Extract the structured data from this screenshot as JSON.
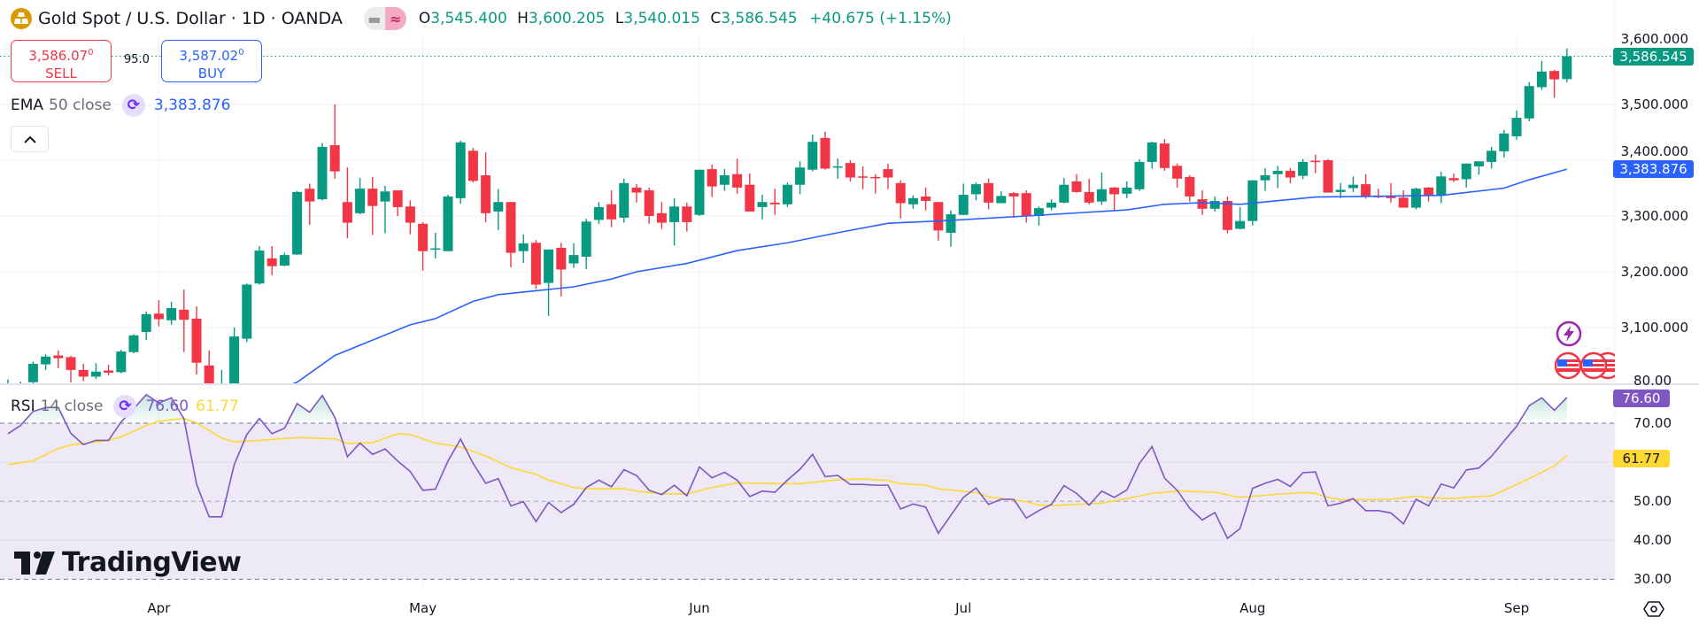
{
  "header": {
    "symbol_title": "Gold Spot / U.S. Dollar · 1D · OANDA",
    "logo_icon": "gold-bars-icon",
    "toggle_icons": [
      "minus-icon",
      "approx-wave-icon"
    ],
    "ohlc": {
      "o_label": "O",
      "o": "3,545.400",
      "h_label": "H",
      "h": "3,600.205",
      "l_label": "L",
      "l": "3,540.015",
      "c_label": "C",
      "c": "3,586.545",
      "change": "+40.675 (+1.15%)"
    }
  },
  "trade": {
    "sell_price_main": "3,586.07",
    "sell_price_sup": "0",
    "sell_label": "SELL",
    "spread": "95.0",
    "buy_price_main": "3,587.02",
    "buy_price_sup": "0",
    "buy_label": "BUY"
  },
  "ema_legend": {
    "name": "EMA",
    "params": "50 close",
    "value": "3,383.876"
  },
  "rsi_legend": {
    "name": "RSI",
    "params": "14 close",
    "value": "76.60",
    "ma_value": "61.77"
  },
  "watermark": "TradingView",
  "colors": {
    "up": "#089981",
    "down": "#f23645",
    "ema": "#2962ff",
    "rsi": "#7e57c2",
    "rsi_ma": "#fdd835",
    "band": "#ede9f7",
    "grid": "#f0f2f5"
  },
  "chart_data": [
    {
      "type": "candlestick",
      "title": "Gold Spot / U.S. Dollar · 1D · OANDA",
      "ylim": [
        3000,
        3600
      ],
      "y_ticks": [
        "3,100.000",
        "3,200.000",
        "3,300.000",
        "3,400.000",
        "3,500.000",
        "3,600.000"
      ],
      "x_ticks": [
        {
          "label": "Apr",
          "candle": 13
        },
        {
          "label": "May",
          "candle": 34
        },
        {
          "label": "Jun",
          "candle": 56
        },
        {
          "label": "Jul",
          "candle": 77
        },
        {
          "label": "Aug",
          "candle": 100
        },
        {
          "label": "Sep",
          "candle": 121
        }
      ],
      "grid": true,
      "last_price_label": "3,586.545",
      "ema_label": "3,383.876",
      "candles_ohlc": [
        [
          2985,
          3007,
          2970,
          3000
        ],
        [
          2990,
          3003,
          2980,
          2998
        ],
        [
          3002,
          3039,
          2998,
          3035
        ],
        [
          3034,
          3052,
          3024,
          3048
        ],
        [
          3050,
          3059,
          3027,
          3045
        ],
        [
          3047,
          3049,
          3002,
          3024
        ],
        [
          3024,
          3035,
          3004,
          3012
        ],
        [
          3012,
          3036,
          3008,
          3021
        ],
        [
          3023,
          3033,
          3014,
          3019
        ],
        [
          3020,
          3060,
          3018,
          3057
        ],
        [
          3056,
          3088,
          3054,
          3086
        ],
        [
          3092,
          3129,
          3078,
          3124
        ],
        [
          3125,
          3149,
          3102,
          3115
        ],
        [
          3113,
          3146,
          3105,
          3135
        ],
        [
          3132,
          3168,
          3056,
          3114
        ],
        [
          3116,
          3138,
          3016,
          3037
        ],
        [
          3032,
          3059,
          2980,
          2995
        ],
        [
          2960,
          3024,
          2955,
          2990
        ],
        [
          2990,
          3100,
          2980,
          3084
        ],
        [
          3080,
          3179,
          3074,
          3177
        ],
        [
          3179,
          3246,
          3177,
          3238
        ],
        [
          3224,
          3246,
          3194,
          3210
        ],
        [
          3211,
          3234,
          3210,
          3230
        ],
        [
          3231,
          3345,
          3230,
          3343
        ],
        [
          3349,
          3358,
          3284,
          3326
        ],
        [
          3330,
          3431,
          3328,
          3424
        ],
        [
          3427,
          3500,
          3367,
          3380
        ],
        [
          3325,
          3387,
          3260,
          3288
        ],
        [
          3305,
          3368,
          3303,
          3349
        ],
        [
          3349,
          3370,
          3266,
          3318
        ],
        [
          3326,
          3354,
          3269,
          3344
        ],
        [
          3346,
          3346,
          3300,
          3316
        ],
        [
          3317,
          3328,
          3267,
          3288
        ],
        [
          3286,
          3289,
          3202,
          3237
        ],
        [
          3241,
          3270,
          3224,
          3242
        ],
        [
          3237,
          3338,
          3237,
          3335
        ],
        [
          3332,
          3435,
          3322,
          3432
        ],
        [
          3417,
          3422,
          3360,
          3363
        ],
        [
          3373,
          3414,
          3289,
          3305
        ],
        [
          3308,
          3348,
          3275,
          3325
        ],
        [
          3325,
          3325,
          3208,
          3234
        ],
        [
          3237,
          3267,
          3216,
          3251
        ],
        [
          3252,
          3257,
          3169,
          3177
        ],
        [
          3180,
          3240,
          3121,
          3240
        ],
        [
          3243,
          3252,
          3156,
          3204
        ],
        [
          3215,
          3251,
          3207,
          3230
        ],
        [
          3227,
          3295,
          3205,
          3290
        ],
        [
          3293,
          3325,
          3286,
          3316
        ],
        [
          3321,
          3346,
          3280,
          3294
        ],
        [
          3297,
          3367,
          3288,
          3359
        ],
        [
          3351,
          3357,
          3324,
          3342
        ],
        [
          3346,
          3351,
          3286,
          3300
        ],
        [
          3305,
          3325,
          3277,
          3288
        ],
        [
          3289,
          3332,
          3247,
          3317
        ],
        [
          3317,
          3324,
          3272,
          3289
        ],
        [
          3302,
          3383,
          3300,
          3383
        ],
        [
          3384,
          3392,
          3334,
          3353
        ],
        [
          3356,
          3384,
          3345,
          3373
        ],
        [
          3375,
          3403,
          3340,
          3351
        ],
        [
          3356,
          3376,
          3308,
          3308
        ],
        [
          3316,
          3338,
          3294,
          3325
        ],
        [
          3324,
          3349,
          3302,
          3321
        ],
        [
          3321,
          3360,
          3316,
          3356
        ],
        [
          3356,
          3398,
          3339,
          3387
        ],
        [
          3383,
          3446,
          3380,
          3433
        ],
        [
          3440,
          3451,
          3383,
          3385
        ],
        [
          3388,
          3403,
          3367,
          3389
        ],
        [
          3395,
          3400,
          3362,
          3369
        ],
        [
          3371,
          3389,
          3348,
          3370
        ],
        [
          3370,
          3375,
          3340,
          3369
        ],
        [
          3384,
          3394,
          3348,
          3369
        ],
        [
          3359,
          3364,
          3296,
          3323
        ],
        [
          3321,
          3337,
          3313,
          3332
        ],
        [
          3335,
          3351,
          3310,
          3327
        ],
        [
          3325,
          3325,
          3256,
          3274
        ],
        [
          3270,
          3310,
          3245,
          3303
        ],
        [
          3302,
          3358,
          3302,
          3338
        ],
        [
          3339,
          3360,
          3328,
          3357
        ],
        [
          3359,
          3367,
          3312,
          3324
        ],
        [
          3323,
          3344,
          3323,
          3336
        ],
        [
          3341,
          3343,
          3297,
          3335
        ],
        [
          3341,
          3346,
          3288,
          3300
        ],
        [
          3300,
          3317,
          3283,
          3314
        ],
        [
          3315,
          3330,
          3310,
          3324
        ],
        [
          3324,
          3368,
          3323,
          3356
        ],
        [
          3362,
          3375,
          3342,
          3343
        ],
        [
          3343,
          3367,
          3321,
          3324
        ],
        [
          3326,
          3378,
          3320,
          3348
        ],
        [
          3351,
          3352,
          3310,
          3339
        ],
        [
          3340,
          3362,
          3332,
          3351
        ],
        [
          3348,
          3402,
          3345,
          3397
        ],
        [
          3397,
          3433,
          3385,
          3432
        ],
        [
          3430,
          3438,
          3381,
          3386
        ],
        [
          3390,
          3394,
          3351,
          3367
        ],
        [
          3370,
          3373,
          3326,
          3335
        ],
        [
          3330,
          3346,
          3302,
          3313
        ],
        [
          3313,
          3335,
          3308,
          3327
        ],
        [
          3327,
          3335,
          3269,
          3275
        ],
        [
          3277,
          3316,
          3276,
          3291
        ],
        [
          3291,
          3364,
          3283,
          3364
        ],
        [
          3364,
          3386,
          3345,
          3373
        ],
        [
          3375,
          3390,
          3350,
          3381
        ],
        [
          3381,
          3386,
          3359,
          3369
        ],
        [
          3372,
          3402,
          3366,
          3397
        ],
        [
          3399,
          3410,
          3377,
          3397
        ],
        [
          3400,
          3402,
          3342,
          3342
        ],
        [
          3343,
          3359,
          3332,
          3347
        ],
        [
          3350,
          3371,
          3343,
          3356
        ],
        [
          3357,
          3375,
          3331,
          3334
        ],
        [
          3336,
          3349,
          3332,
          3335
        ],
        [
          3335,
          3359,
          3324,
          3332
        ],
        [
          3333,
          3346,
          3315,
          3315
        ],
        [
          3315,
          3351,
          3312,
          3349
        ],
        [
          3351,
          3352,
          3326,
          3337
        ],
        [
          3338,
          3379,
          3323,
          3371
        ],
        [
          3368,
          3376,
          3361,
          3364
        ],
        [
          3366,
          3394,
          3351,
          3394
        ],
        [
          3389,
          3398,
          3374,
          3398
        ],
        [
          3397,
          3424,
          3385,
          3417
        ],
        [
          3416,
          3454,
          3405,
          3448
        ],
        [
          3443,
          3489,
          3437,
          3476
        ],
        [
          3475,
          3540,
          3470,
          3533
        ],
        [
          3531,
          3578,
          3526,
          3559
        ],
        [
          3560,
          3562,
          3512,
          3545
        ],
        [
          3545.4,
          3600.205,
          3540.015,
          3586.545
        ]
      ],
      "ema50": [
        [
          22,
          2985
        ],
        [
          24,
          3002
        ],
        [
          27,
          3050
        ],
        [
          33,
          3105
        ],
        [
          35,
          3116
        ],
        [
          38,
          3147
        ],
        [
          40,
          3159
        ],
        [
          43,
          3166
        ],
        [
          46,
          3173
        ],
        [
          49,
          3187
        ],
        [
          51,
          3200
        ],
        [
          55,
          3215
        ],
        [
          59,
          3238
        ],
        [
          63,
          3252
        ],
        [
          67,
          3270
        ],
        [
          71,
          3287
        ],
        [
          75,
          3291
        ],
        [
          82,
          3300
        ],
        [
          90,
          3311
        ],
        [
          93,
          3321
        ],
        [
          96,
          3324
        ],
        [
          99,
          3321
        ],
        [
          105,
          3334
        ],
        [
          115,
          3337
        ],
        [
          120,
          3350
        ],
        [
          122,
          3365
        ],
        [
          125,
          3383.876
        ]
      ]
    },
    {
      "type": "line",
      "title": "RSI 14 close",
      "ylim": [
        28,
        81
      ],
      "y_ticks": [
        "30.00",
        "40.00",
        "50.00",
        "70.00",
        "80.00"
      ],
      "bands": [
        30,
        50,
        70
      ],
      "rsi_label": "76.60",
      "ma_label": "61.77",
      "rsi": [
        67.3,
        69.4,
        73.0,
        74.0,
        74.0,
        67.4,
        64.5,
        65.6,
        65.6,
        70.3,
        73.7,
        77.3,
        75.2,
        76.5,
        71.1,
        54.4,
        46.0,
        46.0,
        59.4,
        67.1,
        71.2,
        67.3,
        68.7,
        75.0,
        72.8,
        77.1,
        71.5,
        61.4,
        64.9,
        62.0,
        63.4,
        60.3,
        57.6,
        52.8,
        53.1,
        60.3,
        65.9,
        59.7,
        54.6,
        55.8,
        48.8,
        49.9,
        44.8,
        49.7,
        47.1,
        49.2,
        53.5,
        55.4,
        53.7,
        58.1,
        56.6,
        52.8,
        51.7,
        54.1,
        51.4,
        58.8,
        56.0,
        57.4,
        55.4,
        51.2,
        52.6,
        52.3,
        55.4,
        58.2,
        62.0,
        56.3,
        56.6,
        54.3,
        54.3,
        54.1,
        54.1,
        48.0,
        49.3,
        48.5,
        41.8,
        46.4,
        51.0,
        53.4,
        49.2,
        50.5,
        50.5,
        45.7,
        47.6,
        49.2,
        54.0,
        52.0,
        49.0,
        52.6,
        51.0,
        52.9,
        59.7,
        64.0,
        55.9,
        52.8,
        48.2,
        45.2,
        47.1,
        40.5,
        43.0,
        53.3,
        54.6,
        55.6,
        53.8,
        57.3,
        57.5,
        48.8,
        49.5,
        50.7,
        47.6,
        47.6,
        47.0,
        44.2,
        50.5,
        48.8,
        54.4,
        53.4,
        58.0,
        58.5,
        61.5,
        65.4,
        69.2,
        74.5,
        76.5,
        73.3,
        76.6
      ],
      "rsi_ma": [
        [
          1,
          59.4
        ],
        [
          3,
          60.3
        ],
        [
          5,
          63.5
        ],
        [
          6,
          64.4
        ],
        [
          9,
          65.6
        ],
        [
          10,
          66.5
        ],
        [
          12,
          69.4
        ],
        [
          13,
          70.5
        ],
        [
          15,
          71.2
        ],
        [
          16,
          70.1
        ],
        [
          18,
          66.2
        ],
        [
          19,
          65.2
        ],
        [
          21,
          65.6
        ],
        [
          24,
          66.3
        ],
        [
          27,
          66.0
        ],
        [
          28,
          64.8
        ],
        [
          30,
          65.0
        ],
        [
          32,
          67.3
        ],
        [
          33,
          67.1
        ],
        [
          35,
          64.9
        ],
        [
          37,
          63.9
        ],
        [
          39,
          61.6
        ],
        [
          41,
          58.6
        ],
        [
          43,
          56.9
        ],
        [
          44,
          55.4
        ],
        [
          46,
          53.5
        ],
        [
          47,
          53.2
        ],
        [
          50,
          53.2
        ],
        [
          51,
          52.6
        ],
        [
          53,
          51.9
        ],
        [
          55,
          51.9
        ],
        [
          57,
          53.5
        ],
        [
          59,
          54.7
        ],
        [
          62,
          54.5
        ],
        [
          64,
          54.5
        ],
        [
          67,
          55.5
        ],
        [
          69,
          55.7
        ],
        [
          71,
          55.3
        ],
        [
          72,
          54.5
        ],
        [
          74,
          54.1
        ],
        [
          75,
          53.2
        ],
        [
          78,
          52.2
        ],
        [
          79,
          51.1
        ],
        [
          82,
          49.9
        ],
        [
          83,
          49.0
        ],
        [
          84,
          48.9
        ],
        [
          86,
          49.2
        ],
        [
          88,
          49.5
        ],
        [
          90,
          50.7
        ],
        [
          92,
          52.0
        ],
        [
          94,
          52.6
        ],
        [
          97,
          52.3
        ],
        [
          99,
          51.0
        ],
        [
          102,
          51.8
        ],
        [
          104,
          52.2
        ],
        [
          105,
          52.0
        ],
        [
          106,
          51.0
        ],
        [
          107,
          50.4
        ],
        [
          110,
          50.4
        ],
        [
          111,
          50.5
        ],
        [
          113,
          51.3
        ],
        [
          114,
          50.9
        ],
        [
          116,
          50.7
        ],
        [
          117,
          51.0
        ],
        [
          119,
          51.4
        ],
        [
          120,
          52.8
        ],
        [
          122,
          55.8
        ],
        [
          124,
          59.0
        ],
        [
          125,
          61.77
        ]
      ]
    }
  ],
  "icons": {
    "collapse": "chevron-up-icon",
    "cycle": "cycle-arrows-icon",
    "event": "lightning-icon",
    "flags": "us-flag-icon",
    "settings": "settings-hexagon-icon"
  }
}
